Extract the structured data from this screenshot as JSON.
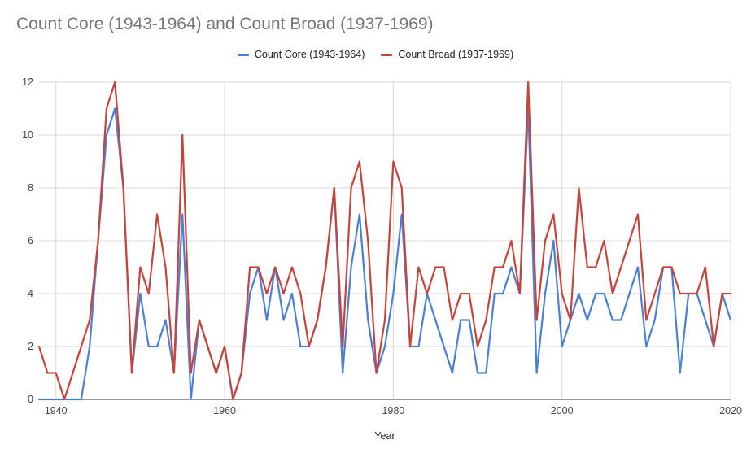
{
  "chart_data": {
    "type": "line",
    "title": "Count Core (1943-1964) and Count Broad (1937-1969)",
    "xlabel": "Year",
    "ylabel": "",
    "xlim": [
      1938,
      2020
    ],
    "ylim": [
      0,
      12
    ],
    "xticks": [
      1940,
      1960,
      1980,
      2000,
      2020
    ],
    "yticks": [
      0,
      2,
      4,
      6,
      8,
      10,
      12
    ],
    "grid": true,
    "legend_position": "top",
    "x": [
      1938,
      1939,
      1940,
      1941,
      1942,
      1943,
      1944,
      1945,
      1946,
      1947,
      1948,
      1949,
      1950,
      1951,
      1952,
      1953,
      1954,
      1955,
      1956,
      1957,
      1958,
      1959,
      1960,
      1961,
      1962,
      1963,
      1964,
      1965,
      1966,
      1967,
      1968,
      1969,
      1970,
      1971,
      1972,
      1973,
      1974,
      1975,
      1976,
      1977,
      1978,
      1979,
      1980,
      1981,
      1982,
      1983,
      1984,
      1985,
      1986,
      1987,
      1988,
      1989,
      1990,
      1991,
      1992,
      1993,
      1994,
      1995,
      1996,
      1997,
      1998,
      1999,
      2000,
      2001,
      2002,
      2003,
      2004,
      2005,
      2006,
      2007,
      2008,
      2009,
      2010,
      2011,
      2012,
      2013,
      2014,
      2015,
      2016,
      2017,
      2018,
      2019,
      2020
    ],
    "series": [
      {
        "name": "Count Core (1943-1964)",
        "color": "#4a7fd8",
        "values": [
          0,
          0,
          0,
          0,
          0,
          0,
          2,
          6,
          10,
          11,
          8,
          1,
          4,
          2,
          2,
          3,
          1,
          7,
          0,
          3,
          2,
          1,
          2,
          0,
          1,
          4,
          5,
          3,
          5,
          3,
          4,
          2,
          2,
          3,
          5,
          8,
          1,
          5,
          7,
          3,
          1,
          2,
          4,
          7,
          2,
          2,
          4,
          3,
          2,
          1,
          3,
          3,
          1,
          1,
          4,
          4,
          5,
          4,
          11,
          1,
          4,
          6,
          2,
          3,
          4,
          3,
          4,
          4,
          3,
          3,
          4,
          5,
          2,
          3,
          5,
          5,
          1,
          4,
          4,
          3,
          2,
          4,
          3
        ]
      },
      {
        "name": "Count Broad (1937-1969)",
        "color": "#c8433a",
        "values": [
          2,
          1,
          1,
          0,
          1,
          2,
          3,
          6,
          11,
          12,
          8,
          1,
          5,
          4,
          7,
          5,
          1,
          10,
          1,
          3,
          2,
          1,
          2,
          0,
          1,
          5,
          5,
          4,
          5,
          4,
          5,
          4,
          2,
          3,
          5,
          8,
          2,
          8,
          9,
          6,
          1,
          3,
          9,
          8,
          2,
          5,
          4,
          5,
          5,
          3,
          4,
          4,
          2,
          3,
          5,
          5,
          6,
          4,
          12,
          3,
          6,
          7,
          4,
          3,
          8,
          5,
          5,
          6,
          4,
          5,
          6,
          7,
          3,
          4,
          5,
          5,
          4,
          4,
          4,
          5,
          2,
          4,
          4
        ]
      }
    ]
  }
}
